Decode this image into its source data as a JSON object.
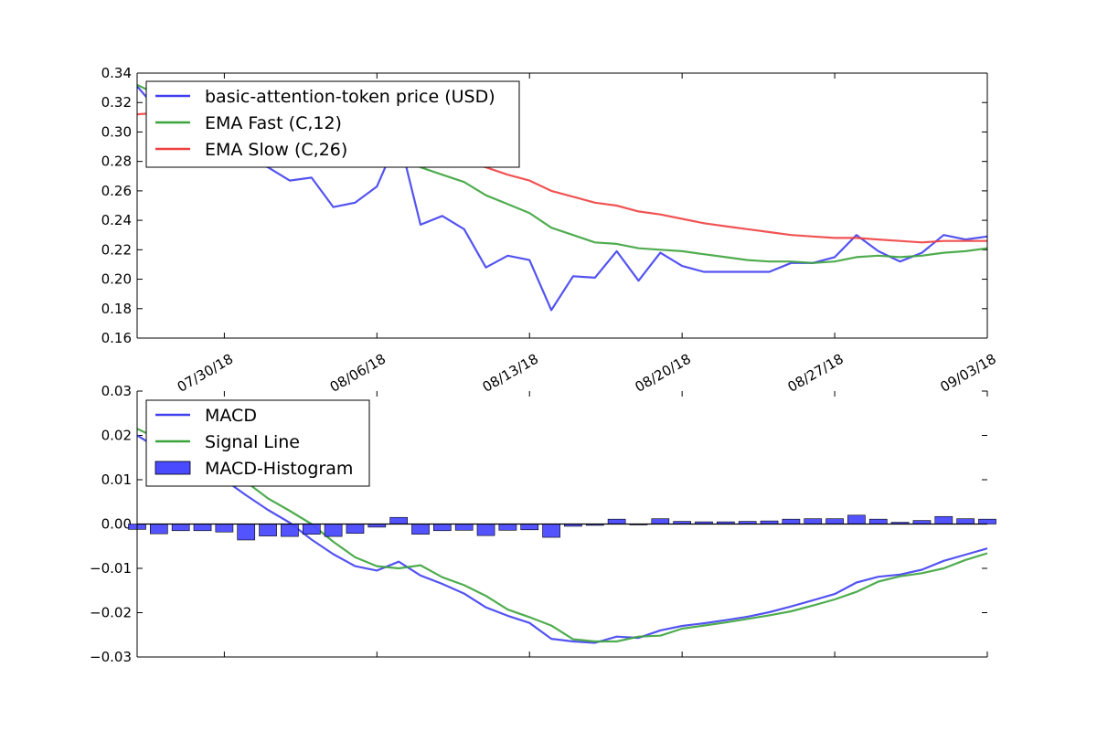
{
  "colors": {
    "price": "#4040f0",
    "fast": "#3ca33c",
    "slow": "#f04040",
    "macd": "#4040f0",
    "signal": "#3ca33c",
    "hist": "#4a4aff"
  },
  "chart_data": [
    {
      "type": "line",
      "title": "",
      "xlabel": "",
      "ylabel": "",
      "x_tick_labels": [
        "07/30/18",
        "08/06/18",
        "08/13/18",
        "08/20/18",
        "08/27/18",
        "09/03/18"
      ],
      "x_tick_days": [
        5,
        12,
        19,
        26,
        33,
        40
      ],
      "x_range_days": [
        1,
        40
      ],
      "ylim": [
        0.16,
        0.34
      ],
      "y_ticks": [
        0.16,
        0.18,
        0.2,
        0.22,
        0.24,
        0.26,
        0.28,
        0.3,
        0.32,
        0.34
      ],
      "y_tick_labels": [
        "0.16",
        "0.18",
        "0.20",
        "0.22",
        "0.24",
        "0.26",
        "0.28",
        "0.30",
        "0.32",
        "0.34"
      ],
      "legend_position": "upper-left",
      "series": [
        {
          "name": "basic-attention-token price (USD)",
          "color_key": "price",
          "values": [
            0.331,
            0.314,
            0.295,
            0.289,
            0.283,
            0.28,
            0.276,
            0.267,
            0.269,
            0.249,
            0.252,
            0.263,
            0.297,
            0.237,
            0.243,
            0.234,
            0.208,
            0.216,
            0.213,
            0.179,
            0.202,
            0.201,
            0.219,
            0.199,
            0.218,
            0.209,
            0.205,
            0.205,
            0.205,
            0.205,
            0.211,
            0.211,
            0.215,
            0.23,
            0.219,
            0.212,
            0.218,
            0.23,
            0.227,
            0.229
          ]
        },
        {
          "name": "EMA Fast (C,12)",
          "color_key": "fast",
          "values": [
            0.332,
            0.325,
            0.317,
            0.31,
            0.304,
            0.298,
            0.293,
            0.289,
            0.286,
            0.282,
            0.28,
            0.279,
            0.285,
            0.276,
            0.271,
            0.266,
            0.257,
            0.251,
            0.245,
            0.235,
            0.23,
            0.225,
            0.224,
            0.221,
            0.22,
            0.219,
            0.217,
            0.215,
            0.213,
            0.212,
            0.212,
            0.211,
            0.212,
            0.215,
            0.216,
            0.215,
            0.216,
            0.218,
            0.219,
            0.221
          ]
        },
        {
          "name": "EMA Slow (C,26)",
          "color_key": "slow",
          "values": [
            0.312,
            0.313,
            0.312,
            0.31,
            0.307,
            0.305,
            0.302,
            0.299,
            0.296,
            0.292,
            0.289,
            0.286,
            0.285,
            0.283,
            0.281,
            0.279,
            0.276,
            0.271,
            0.267,
            0.26,
            0.256,
            0.252,
            0.25,
            0.246,
            0.244,
            0.241,
            0.238,
            0.236,
            0.234,
            0.232,
            0.23,
            0.229,
            0.228,
            0.228,
            0.227,
            0.226,
            0.225,
            0.226,
            0.226,
            0.226
          ]
        }
      ]
    },
    {
      "type": "line",
      "title": "",
      "xlabel": "",
      "ylabel": "",
      "x_range_days": [
        1,
        40
      ],
      "ylim": [
        -0.03,
        0.03
      ],
      "y_ticks": [
        -0.03,
        -0.02,
        -0.01,
        0.0,
        0.01,
        0.02,
        0.03
      ],
      "y_tick_labels": [
        "−0.03",
        "−0.02",
        "−0.01",
        "0.00",
        "0.01",
        "0.02",
        "0.03"
      ],
      "legend_position": "upper-left",
      "series": [
        {
          "name": "MACD",
          "color_key": "macd",
          "values": [
            0.02,
            0.017,
            0.014,
            0.012,
            0.01,
            0.0065,
            0.0032,
            0.0003,
            -0.0035,
            -0.0068,
            -0.0095,
            -0.0105,
            -0.0085,
            -0.0116,
            -0.0135,
            -0.0157,
            -0.0188,
            -0.0207,
            -0.0223,
            -0.0259,
            -0.0265,
            -0.0268,
            -0.0254,
            -0.0257,
            -0.024,
            -0.023,
            -0.0224,
            -0.0217,
            -0.0209,
            -0.0199,
            -0.0186,
            -0.0172,
            -0.0158,
            -0.0132,
            -0.0119,
            -0.0114,
            -0.0103,
            -0.0083,
            -0.0069,
            -0.0055
          ]
        },
        {
          "name": "Signal Line",
          "color_key": "signal",
          "values": [
            0.0215,
            0.0192,
            0.016,
            0.0135,
            0.0115,
            0.0095,
            0.0058,
            0.003,
            0.0,
            -0.004,
            -0.0075,
            -0.0095,
            -0.01,
            -0.0093,
            -0.012,
            -0.0138,
            -0.0162,
            -0.0193,
            -0.021,
            -0.0229,
            -0.026,
            -0.0265,
            -0.0265,
            -0.0254,
            -0.0252,
            -0.0236,
            -0.0229,
            -0.0222,
            -0.0214,
            -0.0206,
            -0.0197,
            -0.0184,
            -0.017,
            -0.0153,
            -0.013,
            -0.0118,
            -0.0111,
            -0.01,
            -0.0081,
            -0.0066
          ]
        },
        {
          "name": "MACD-Histogram",
          "color_key": "hist",
          "type": "bar",
          "values": [
            -0.0012,
            -0.0022,
            -0.0015,
            -0.0015,
            -0.0018,
            -0.0036,
            -0.0027,
            -0.0028,
            -0.0023,
            -0.0028,
            -0.0021,
            -0.0007,
            0.0015,
            -0.0023,
            -0.0015,
            -0.0014,
            -0.0026,
            -0.0014,
            -0.0013,
            -0.003,
            -0.0005,
            -0.0003,
            0.0011,
            -0.0002,
            0.0012,
            0.0006,
            0.0005,
            0.0005,
            0.0006,
            0.0007,
            0.0011,
            0.0012,
            0.0012,
            0.002,
            0.0011,
            0.0004,
            0.0008,
            0.0017,
            0.0012,
            0.0011
          ]
        }
      ]
    }
  ]
}
